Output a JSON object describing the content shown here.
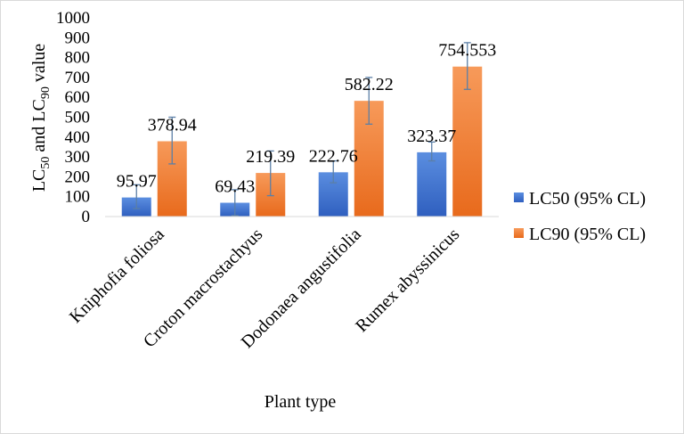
{
  "chart_data": {
    "type": "bar",
    "title": "",
    "xlabel": "Plant type",
    "ylabel": {
      "base": "LC",
      "sub1": "50",
      "middle": " and LC",
      "sub2": "90",
      "tail": " value"
    },
    "ylim": [
      0,
      1000
    ],
    "ytick_step": 100,
    "categories": [
      "Kniphofia foliosa",
      "Croton macrostachyus",
      "Dodonaea angustifolia",
      "Rumex abyssinicus"
    ],
    "series": [
      {
        "name": "LC50 (95% CL)",
        "color": "#4472c4",
        "values": [
          95.97,
          69.43,
          222.76,
          323.37
        ],
        "labels": [
          "95.97",
          "69.43",
          "222.76",
          "323.37"
        ],
        "error_low": [
          40,
          5,
          170,
          280
        ],
        "error_high": [
          160,
          135,
          280,
          375
        ]
      },
      {
        "name": "LC90 (95% CL)",
        "color": "#ed7d31",
        "values": [
          378.94,
          219.39,
          582.22,
          754.553
        ],
        "labels": [
          "378.94",
          "219.39",
          "582.22",
          "754.553"
        ],
        "error_low": [
          265,
          105,
          465,
          640
        ],
        "error_high": [
          500,
          330,
          700,
          875
        ]
      }
    ],
    "legend_position": "right",
    "grid": false,
    "error_bar_color": "#5b7fa6"
  }
}
